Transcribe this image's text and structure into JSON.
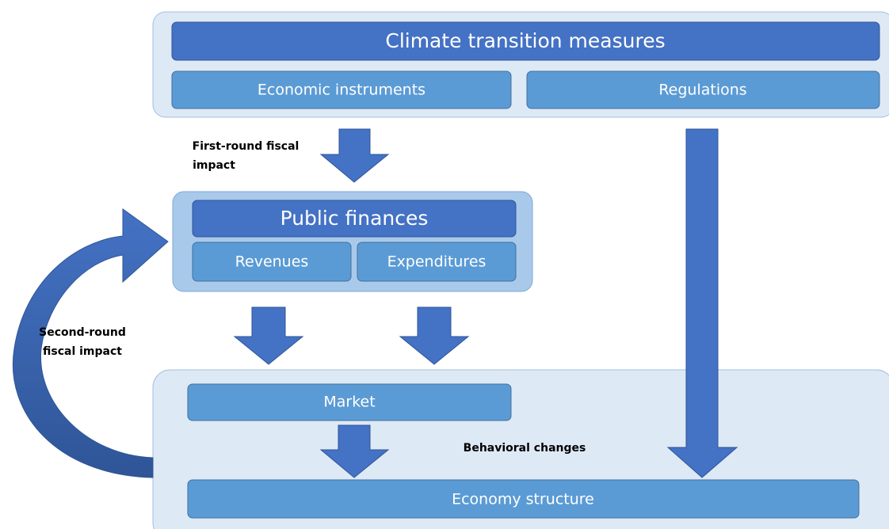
{
  "top": {
    "title": "Climate transition measures",
    "items": [
      "Economic instruments",
      "Regulations"
    ]
  },
  "first_round": [
    "First-round fiscal",
    "impact"
  ],
  "public_finances": {
    "title": "Public finances",
    "items": [
      "Revenues",
      "Expenditures"
    ]
  },
  "second_round": [
    "Second-round",
    "fiscal impact"
  ],
  "bottom": {
    "market": "Market",
    "behavioral": "Behavioral changes",
    "economy": "Economy structure"
  }
}
